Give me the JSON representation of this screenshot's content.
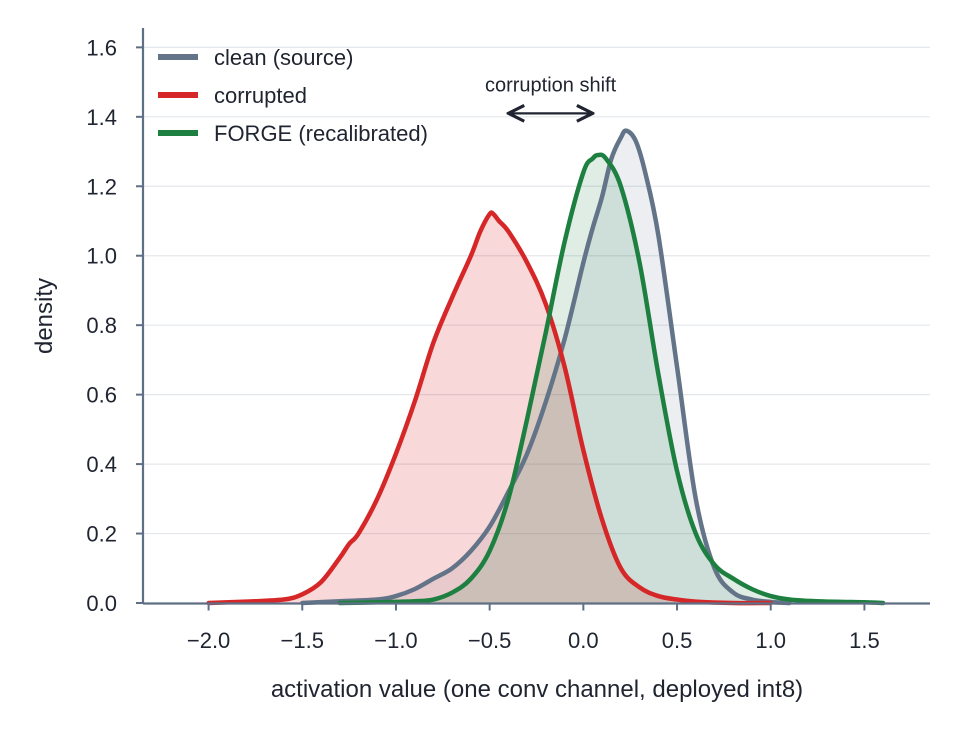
{
  "chart_data": {
    "type": "area",
    "xlabel": "activation value (one conv channel, deployed int8)",
    "ylabel": "density",
    "xlim": [
      -2.35,
      1.85
    ],
    "ylim": [
      0,
      1.65
    ],
    "xticks": [
      -2.0,
      -1.5,
      -1.0,
      -0.5,
      0.0,
      0.5,
      1.0,
      1.5
    ],
    "xtick_labels": [
      "−2.0",
      "−1.5",
      "−1.0",
      "−0.5",
      "0.0",
      "0.5",
      "1.0",
      "1.5"
    ],
    "yticks": [
      0.0,
      0.2,
      0.4,
      0.6,
      0.8,
      1.0,
      1.2,
      1.4,
      1.6
    ],
    "ytick_labels": [
      "0.0",
      "0.2",
      "0.4",
      "0.6",
      "0.8",
      "1.0",
      "1.2",
      "1.4",
      "1.6"
    ],
    "grid": "horizontal",
    "legend_position": "top-left",
    "series": [
      {
        "name": "clean (source)",
        "color": "#647488",
        "fill_opacity": 0.12,
        "x": [
          -1.5,
          -1.3,
          -1.1,
          -1.0,
          -0.9,
          -0.8,
          -0.7,
          -0.6,
          -0.5,
          -0.4,
          -0.3,
          -0.2,
          -0.1,
          0.0,
          0.05,
          0.1,
          0.15,
          0.2,
          0.23,
          0.28,
          0.33,
          0.4,
          0.5,
          0.6,
          0.7,
          0.8,
          0.9,
          1.0,
          1.1
        ],
        "y": [
          0.0,
          0.005,
          0.01,
          0.02,
          0.04,
          0.07,
          0.1,
          0.15,
          0.22,
          0.32,
          0.43,
          0.58,
          0.76,
          0.98,
          1.08,
          1.17,
          1.28,
          1.34,
          1.36,
          1.33,
          1.24,
          1.06,
          0.68,
          0.3,
          0.1,
          0.03,
          0.01,
          0.003,
          0.0
        ]
      },
      {
        "name": "corrupted",
        "color": "#d62728",
        "fill_opacity": 0.18,
        "x": [
          -2.0,
          -1.8,
          -1.6,
          -1.5,
          -1.4,
          -1.3,
          -1.25,
          -1.2,
          -1.1,
          -1.0,
          -0.9,
          -0.8,
          -0.7,
          -0.6,
          -0.55,
          -0.5,
          -0.48,
          -0.45,
          -0.4,
          -0.3,
          -0.2,
          -0.1,
          0.0,
          0.1,
          0.2,
          0.3,
          0.4,
          0.5,
          0.6,
          0.8,
          1.0
        ],
        "y": [
          0.0,
          0.004,
          0.01,
          0.025,
          0.06,
          0.13,
          0.17,
          0.2,
          0.3,
          0.43,
          0.58,
          0.75,
          0.88,
          1.0,
          1.07,
          1.12,
          1.12,
          1.1,
          1.07,
          0.98,
          0.86,
          0.68,
          0.44,
          0.24,
          0.1,
          0.045,
          0.02,
          0.01,
          0.004,
          0.0,
          0.0
        ]
      },
      {
        "name": "FORGE (recalibrated)",
        "color": "#1e8040",
        "fill_opacity": 0.14,
        "x": [
          -1.3,
          -1.1,
          -0.9,
          -0.8,
          -0.7,
          -0.6,
          -0.5,
          -0.4,
          -0.3,
          -0.2,
          -0.1,
          0.0,
          0.05,
          0.08,
          0.12,
          0.2,
          0.3,
          0.4,
          0.5,
          0.6,
          0.7,
          0.8,
          0.9,
          1.0,
          1.1,
          1.2,
          1.3,
          1.4,
          1.5,
          1.6
        ],
        "y": [
          0.0,
          0.002,
          0.005,
          0.01,
          0.03,
          0.07,
          0.15,
          0.3,
          0.53,
          0.78,
          1.04,
          1.24,
          1.28,
          1.29,
          1.28,
          1.2,
          0.98,
          0.66,
          0.38,
          0.2,
          0.11,
          0.07,
          0.04,
          0.02,
          0.01,
          0.006,
          0.004,
          0.003,
          0.002,
          0.0
        ]
      }
    ],
    "annotations": [
      {
        "text": "corruption shift",
        "arrow_from_x": -0.4,
        "arrow_to_x": 0.05,
        "arrow_y": 1.41,
        "text_y": 1.49
      }
    ]
  }
}
